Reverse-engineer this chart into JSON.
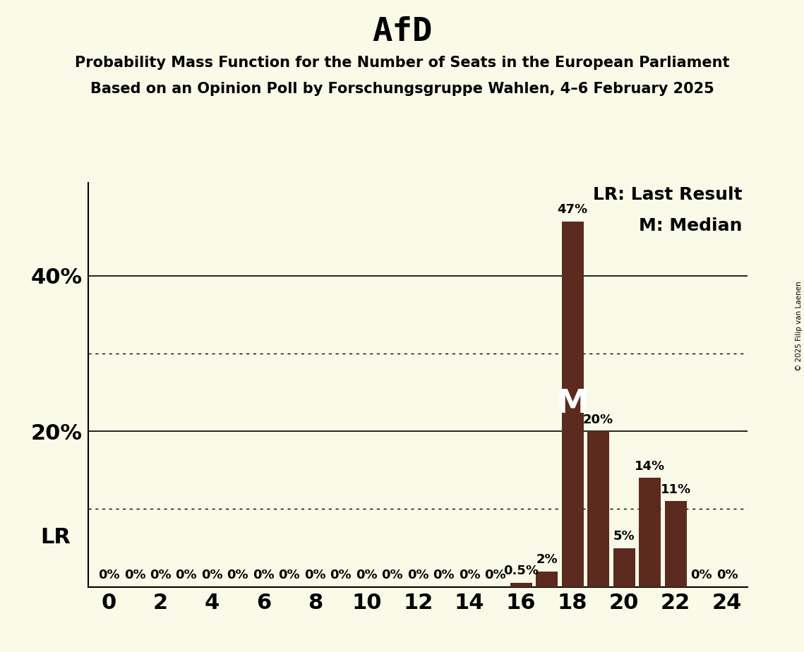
{
  "title": "AfD",
  "subtitle1": "Probability Mass Function for the Number of Seats in the European Parliament",
  "subtitle2": "Based on an Opinion Poll by Forschungsgruppe Wahlen, 4–6 February 2025",
  "copyright": "© 2025 Filip van Laenen",
  "legend_lr": "LR: Last Result",
  "legend_m": "M: Median",
  "background_color": "#FAFAE8",
  "bar_color": "#5C2A1E",
  "seats": [
    0,
    1,
    2,
    3,
    4,
    5,
    6,
    7,
    8,
    9,
    10,
    11,
    12,
    13,
    14,
    15,
    16,
    17,
    18,
    19,
    20,
    21,
    22,
    23,
    24
  ],
  "probabilities": [
    0,
    0,
    0,
    0,
    0,
    0,
    0,
    0,
    0,
    0,
    0,
    0,
    0,
    0,
    0,
    0,
    0.5,
    2,
    47,
    20,
    5,
    14,
    11,
    0,
    0
  ],
  "last_result_seat": 0,
  "median_seat": 18,
  "solid_yticks": [
    20,
    40
  ],
  "dotted_yticks": [
    10,
    30
  ],
  "bar_labels": {
    "0": "0%",
    "1": "0%",
    "2": "0%",
    "3": "0%",
    "4": "0%",
    "5": "0%",
    "6": "0%",
    "7": "0%",
    "8": "0%",
    "9": "0%",
    "10": "0%",
    "11": "0%",
    "12": "0%",
    "13": "0%",
    "14": "0%",
    "15": "0%",
    "16": "0.5%",
    "17": "2%",
    "18": "47%",
    "19": "20%",
    "20": "5%",
    "21": "14%",
    "22": "11%",
    "23": "0%",
    "24": "0%"
  },
  "title_fontsize": 34,
  "subtitle_fontsize": 15,
  "axis_tick_fontsize": 22,
  "bar_label_fontsize": 13,
  "legend_fontsize": 18,
  "lr_label_fontsize": 22,
  "median_label_fontsize": 34,
  "ytick_label_positions": [
    20,
    40
  ],
  "ytick_label_texts": [
    "20%",
    "40%"
  ]
}
